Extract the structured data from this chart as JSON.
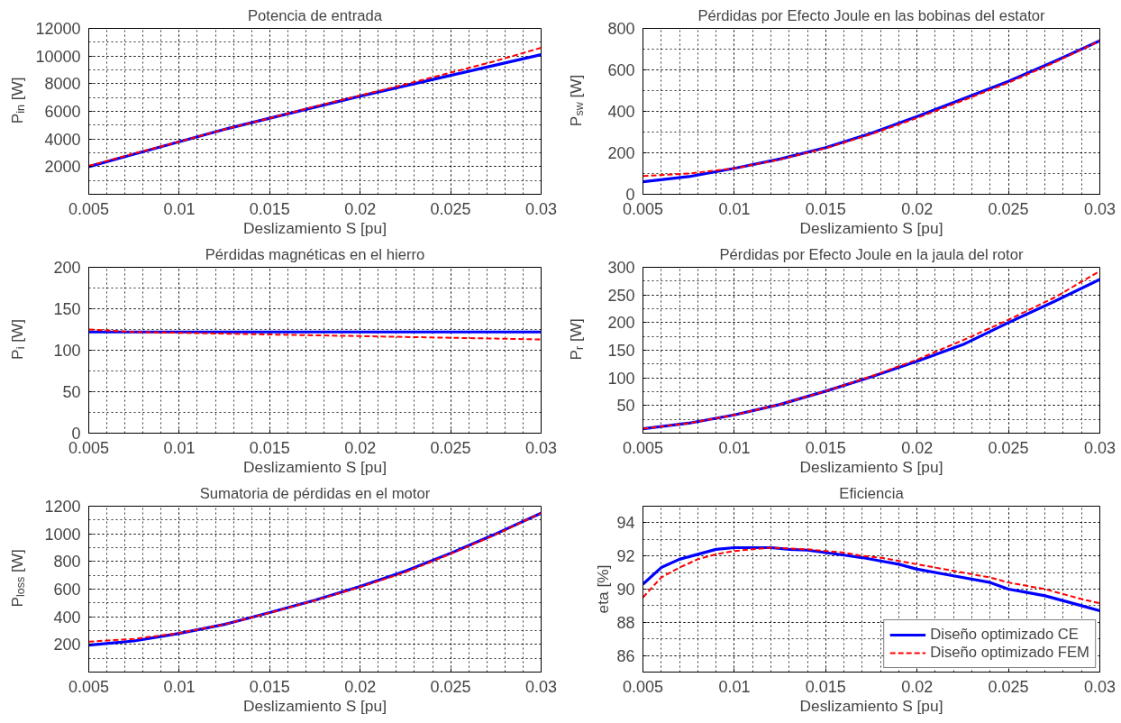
{
  "chart_data": [
    {
      "type": "line",
      "title": "Potencia de entrada",
      "xlabel": "Deslizamiento S [pu]",
      "ylabel": "P$_{in}$ [W]",
      "x": [
        0.005,
        0.0075,
        0.01,
        0.0125,
        0.015,
        0.0175,
        0.02,
        0.0225,
        0.025,
        0.0275,
        0.03
      ],
      "xlim": [
        0.005,
        0.03
      ],
      "xticks": [
        0.005,
        0.01,
        0.015,
        0.02,
        0.025,
        0.03
      ],
      "ylim": [
        0,
        12000
      ],
      "yticks": [
        2000,
        4000,
        6000,
        8000,
        10000,
        12000
      ],
      "grid": true,
      "series": [
        {
          "color": "#0000ff",
          "line_style": "solid",
          "values": [
            2000,
            2900,
            3800,
            4700,
            5500,
            6300,
            7100,
            7850,
            8600,
            9350,
            10100
          ]
        },
        {
          "color": "#ff0000",
          "line_style": "dashed",
          "values": [
            2050,
            2950,
            3800,
            4700,
            5500,
            6350,
            7150,
            7950,
            8800,
            9650,
            10600
          ]
        }
      ]
    },
    {
      "type": "line",
      "title": "Pérdidas por Efecto Joule en las bobinas del estator",
      "xlabel": "Deslizamiento S [pu]",
      "ylabel": "P$_{sw}$ [W]",
      "x": [
        0.005,
        0.0075,
        0.01,
        0.0125,
        0.015,
        0.0175,
        0.02,
        0.0225,
        0.025,
        0.0275,
        0.03
      ],
      "xlim": [
        0.005,
        0.03
      ],
      "xticks": [
        0.005,
        0.01,
        0.015,
        0.02,
        0.025,
        0.03
      ],
      "ylim": [
        0,
        800
      ],
      "yticks": [
        0,
        200,
        400,
        600,
        800
      ],
      "grid": true,
      "series": [
        {
          "color": "#0000ff",
          "line_style": "solid",
          "values": [
            60,
            85,
            125,
            170,
            225,
            295,
            375,
            460,
            545,
            640,
            740
          ]
        },
        {
          "color": "#ff0000",
          "line_style": "dashed",
          "values": [
            88,
            100,
            125,
            168,
            222,
            290,
            368,
            452,
            538,
            635,
            740
          ]
        }
      ]
    },
    {
      "type": "line",
      "title": "Pérdidas magnéticas en el hierro",
      "xlabel": "Deslizamiento S [pu]",
      "ylabel": "P$_{i}$ [W]",
      "x": [
        0.005,
        0.0075,
        0.01,
        0.0125,
        0.015,
        0.0175,
        0.02,
        0.0225,
        0.025,
        0.0275,
        0.03
      ],
      "xlim": [
        0.005,
        0.03
      ],
      "xticks": [
        0.005,
        0.01,
        0.015,
        0.02,
        0.025,
        0.03
      ],
      "ylim": [
        0,
        200
      ],
      "yticks": [
        0,
        50,
        100,
        150,
        200
      ],
      "grid": true,
      "series": [
        {
          "color": "#0000ff",
          "line_style": "solid",
          "values": [
            122,
            122,
            122,
            122,
            122,
            122,
            122,
            122,
            122,
            122,
            122
          ]
        },
        {
          "color": "#ff0000",
          "line_style": "dashed",
          "values": [
            125,
            122,
            121,
            120,
            119,
            118,
            117,
            116,
            115,
            114,
            113
          ]
        }
      ]
    },
    {
      "type": "line",
      "title": "Pérdidas por Efecto Joule en la jaula del rotor",
      "xlabel": "Deslizamiento S [pu]",
      "ylabel": "P$_{r}$ [W]",
      "x": [
        0.005,
        0.0075,
        0.01,
        0.0125,
        0.015,
        0.0175,
        0.02,
        0.0225,
        0.025,
        0.0275,
        0.03
      ],
      "xlim": [
        0.005,
        0.03
      ],
      "xticks": [
        0.005,
        0.01,
        0.015,
        0.02,
        0.025,
        0.03
      ],
      "ylim": [
        0,
        300
      ],
      "yticks": [
        50,
        100,
        150,
        200,
        250,
        300
      ],
      "grid": true,
      "series": [
        {
          "color": "#0000ff",
          "line_style": "solid",
          "values": [
            8,
            18,
            33,
            52,
            76,
            102,
            130,
            160,
            200,
            238,
            278
          ]
        },
        {
          "color": "#ff0000",
          "line_style": "dashed",
          "values": [
            8,
            18,
            33,
            52,
            76,
            103,
            133,
            168,
            205,
            245,
            293
          ]
        }
      ]
    },
    {
      "type": "line",
      "title": "Sumatoria de pérdidas en el motor",
      "xlabel": "Deslizamiento S [pu]",
      "ylabel": "P$_{loss}$ [W]",
      "x": [
        0.005,
        0.0075,
        0.01,
        0.0125,
        0.015,
        0.0175,
        0.02,
        0.0225,
        0.025,
        0.0275,
        0.03
      ],
      "xlim": [
        0.005,
        0.03
      ],
      "xticks": [
        0.005,
        0.01,
        0.015,
        0.02,
        0.025,
        0.03
      ],
      "ylim": [
        0,
        1200
      ],
      "yticks": [
        200,
        400,
        600,
        800,
        1000,
        1200
      ],
      "grid": true,
      "series": [
        {
          "color": "#0000ff",
          "line_style": "solid",
          "values": [
            195,
            225,
            280,
            345,
            430,
            520,
            620,
            730,
            860,
            1000,
            1150
          ]
        },
        {
          "color": "#ff0000",
          "line_style": "dashed",
          "values": [
            220,
            240,
            282,
            345,
            428,
            518,
            615,
            722,
            855,
            995,
            1150
          ]
        }
      ]
    },
    {
      "type": "line",
      "title": "Eficiencia",
      "xlabel": "Deslizamiento S [pu]",
      "ylabel": "eta [%]",
      "x": [
        0.005,
        0.006,
        0.007,
        0.008,
        0.009,
        0.01,
        0.011,
        0.012,
        0.013,
        0.014,
        0.015,
        0.016,
        0.017,
        0.018,
        0.019,
        0.02,
        0.022,
        0.024,
        0.025,
        0.026,
        0.027,
        0.028,
        0.029,
        0.03
      ],
      "xlim": [
        0.005,
        0.03
      ],
      "xticks": [
        0.005,
        0.01,
        0.015,
        0.02,
        0.025,
        0.03
      ],
      "ylim": [
        85,
        95
      ],
      "yticks": [
        86,
        88,
        90,
        92,
        94
      ],
      "grid": true,
      "legend": "bottom right",
      "series": [
        {
          "name": "Diseño optimizado CE",
          "color": "#0000ff",
          "line_style": "solid",
          "values": [
            90.3,
            91.3,
            91.8,
            92.1,
            92.4,
            92.5,
            92.5,
            92.5,
            92.4,
            92.35,
            92.2,
            92.05,
            91.9,
            91.7,
            91.5,
            91.2,
            90.8,
            90.4,
            90.0,
            89.8,
            89.6,
            89.3,
            89.0,
            88.7
          ]
        },
        {
          "name": "Diseño optimizado FEM",
          "color": "#ff0000",
          "line_style": "dashed",
          "values": [
            89.5,
            90.7,
            91.3,
            91.8,
            92.1,
            92.3,
            92.4,
            92.5,
            92.45,
            92.4,
            92.3,
            92.2,
            92.0,
            91.9,
            91.7,
            91.5,
            91.1,
            90.7,
            90.4,
            90.2,
            90.0,
            89.7,
            89.4,
            89.15
          ]
        }
      ]
    }
  ]
}
